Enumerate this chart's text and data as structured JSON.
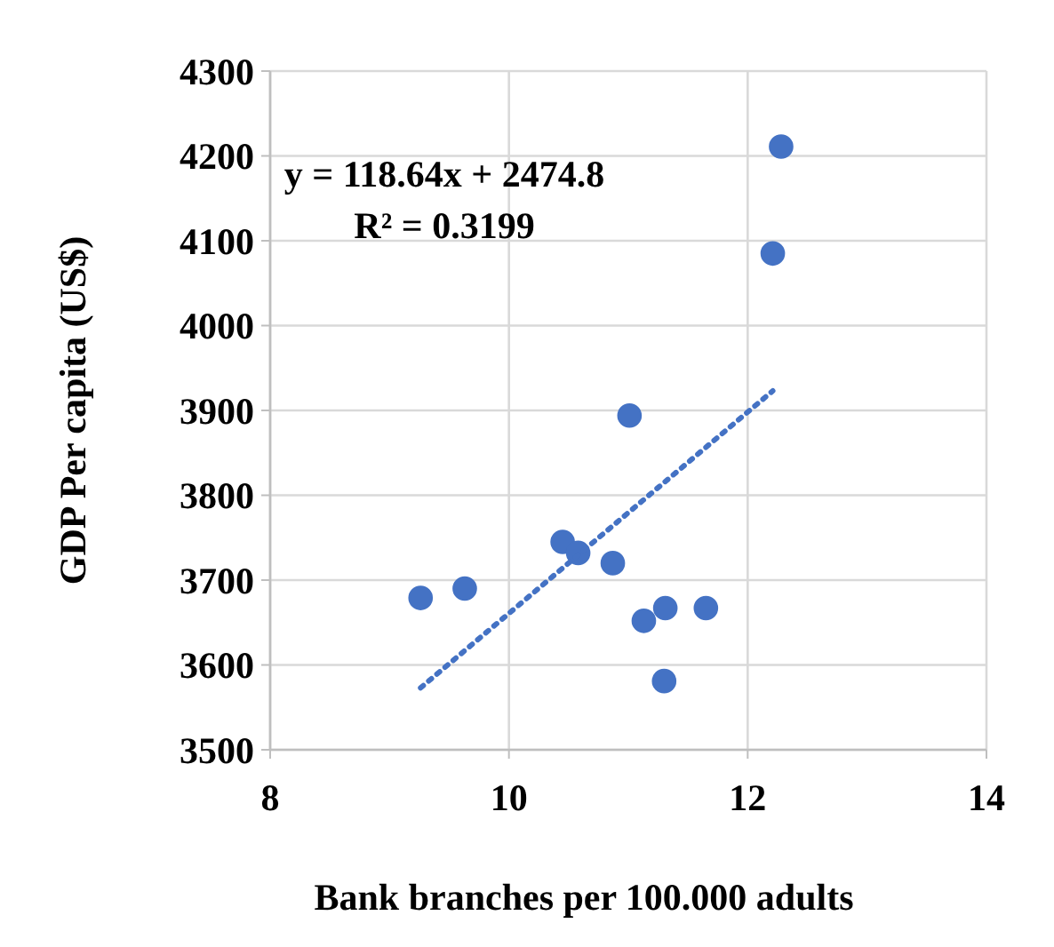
{
  "chart_data": {
    "type": "scatter",
    "xlabel": "Bank branches per 100.000 adults",
    "ylabel": "GDP  Per capita (US$)",
    "xlim": [
      8,
      14
    ],
    "xticks": [
      8,
      10,
      12,
      14
    ],
    "ylim": [
      3500,
      4300
    ],
    "yticks": [
      3500,
      3600,
      3700,
      3800,
      3900,
      4000,
      4100,
      4200,
      4300
    ],
    "grid": true,
    "series": [
      {
        "marker": "circle",
        "color": "#4472c4",
        "x": [
          9.26,
          9.63,
          10.45,
          10.58,
          10.87,
          11.01,
          11.13,
          11.31,
          11.65,
          11.3,
          12.28,
          12.21
        ],
        "values": [
          3679,
          3690,
          3745,
          3732,
          3720,
          3894,
          3652,
          3667,
          3667,
          3581,
          4211,
          4085
        ]
      },
      {
        "type": "line",
        "line_style": "dotted",
        "color": "#4472c4",
        "x": [
          9.26,
          12.21
        ],
        "values": [
          3573,
          3923
        ]
      }
    ],
    "annotations": [
      "y = 118.64x + 2474.8",
      "R² = 0.3199"
    ]
  }
}
